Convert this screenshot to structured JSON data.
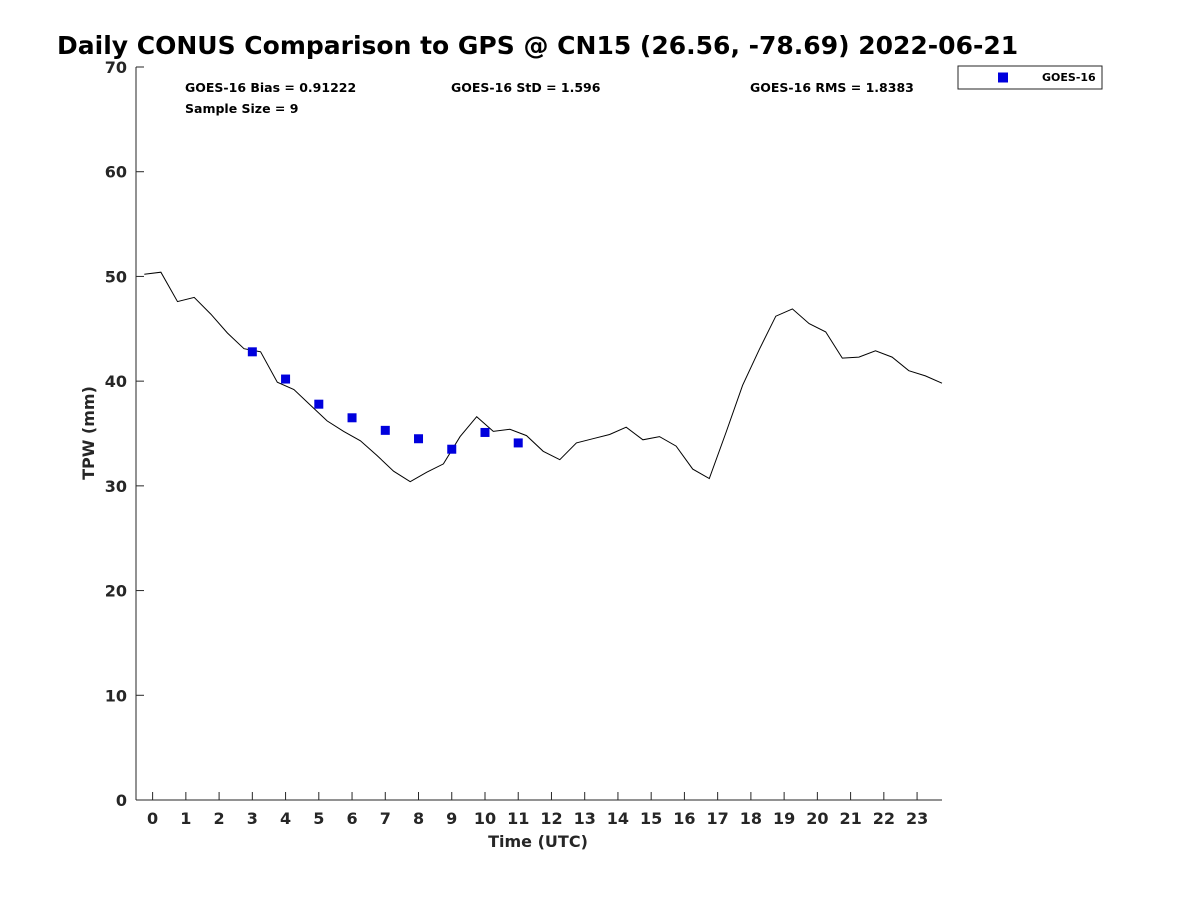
{
  "chart_data": {
    "type": "scatter",
    "title": "Daily CONUS Comparison to GPS @ CN15 (26.56, -78.69) 2022-06-21",
    "xlabel": "Time (UTC)",
    "ylabel": "TPW (mm)",
    "xlim": [
      -0.5,
      23.75
    ],
    "ylim": [
      0,
      70
    ],
    "x_ticks": [
      0,
      1,
      2,
      3,
      4,
      5,
      6,
      7,
      8,
      9,
      10,
      11,
      12,
      13,
      14,
      15,
      16,
      17,
      18,
      19,
      20,
      21,
      22,
      23
    ],
    "x_tick_labels": [
      "0",
      "1",
      "2",
      "3",
      "4",
      "5",
      "6",
      "7",
      "8",
      "9",
      "10",
      "11",
      "12",
      "13",
      "14",
      "15",
      "16",
      "17",
      "18",
      "19",
      "20",
      "21",
      "22",
      "23"
    ],
    "y_ticks": [
      0,
      10,
      20,
      30,
      40,
      50,
      60,
      70
    ],
    "y_tick_labels": [
      "0",
      "10",
      "20",
      "30",
      "40",
      "50",
      "60",
      "70"
    ],
    "grid": false,
    "legend_position": "top-right, outside plot",
    "stats": {
      "bias": "GOES-16 Bias = 0.91222",
      "std": "GOES-16 StD = 1.596",
      "rms": "GOES-16 RMS = 1.8383",
      "sample": "Sample Size = 9"
    },
    "series": [
      {
        "name": "GOES-16",
        "kind": "scatter",
        "marker": "square",
        "color": "#0000dd",
        "x": [
          3,
          4,
          5,
          6,
          7,
          8,
          9,
          10,
          11
        ],
        "y": [
          42.8,
          40.2,
          37.8,
          36.5,
          35.3,
          34.5,
          33.5,
          35.1,
          34.1
        ]
      },
      {
        "kind": "line",
        "color": "#000000",
        "x": [
          -0.25,
          0.25,
          0.75,
          1.25,
          1.75,
          2.25,
          2.75,
          3.25,
          3.75,
          4.25,
          4.75,
          5.25,
          5.75,
          6.25,
          6.75,
          7.25,
          7.75,
          8.25,
          8.75,
          9.25,
          9.75,
          10.25,
          10.75,
          11.25,
          11.75,
          12.25,
          12.75,
          13.25,
          13.75,
          14.25,
          14.75,
          15.25,
          15.75,
          16.25,
          16.75,
          17.25,
          17.75,
          18.25,
          18.75,
          19.25,
          19.75,
          20.25,
          20.75,
          21.25,
          21.75,
          22.25,
          22.75,
          23.25,
          23.75
        ],
        "y": [
          50.2,
          50.4,
          47.6,
          48.0,
          46.4,
          44.6,
          43.1,
          42.8,
          39.9,
          39.2,
          37.7,
          36.2,
          35.2,
          34.3,
          32.9,
          31.4,
          30.4,
          31.3,
          32.1,
          34.7,
          36.6,
          35.2,
          35.4,
          34.8,
          33.3,
          32.5,
          34.1,
          34.5,
          34.9,
          35.6,
          34.4,
          34.7,
          33.8,
          31.6,
          30.7,
          35.1,
          39.6,
          43.0,
          46.2,
          46.9,
          45.5,
          44.7,
          42.2,
          42.3,
          42.9,
          42.3,
          41.0,
          40.5,
          39.8
        ]
      }
    ]
  }
}
